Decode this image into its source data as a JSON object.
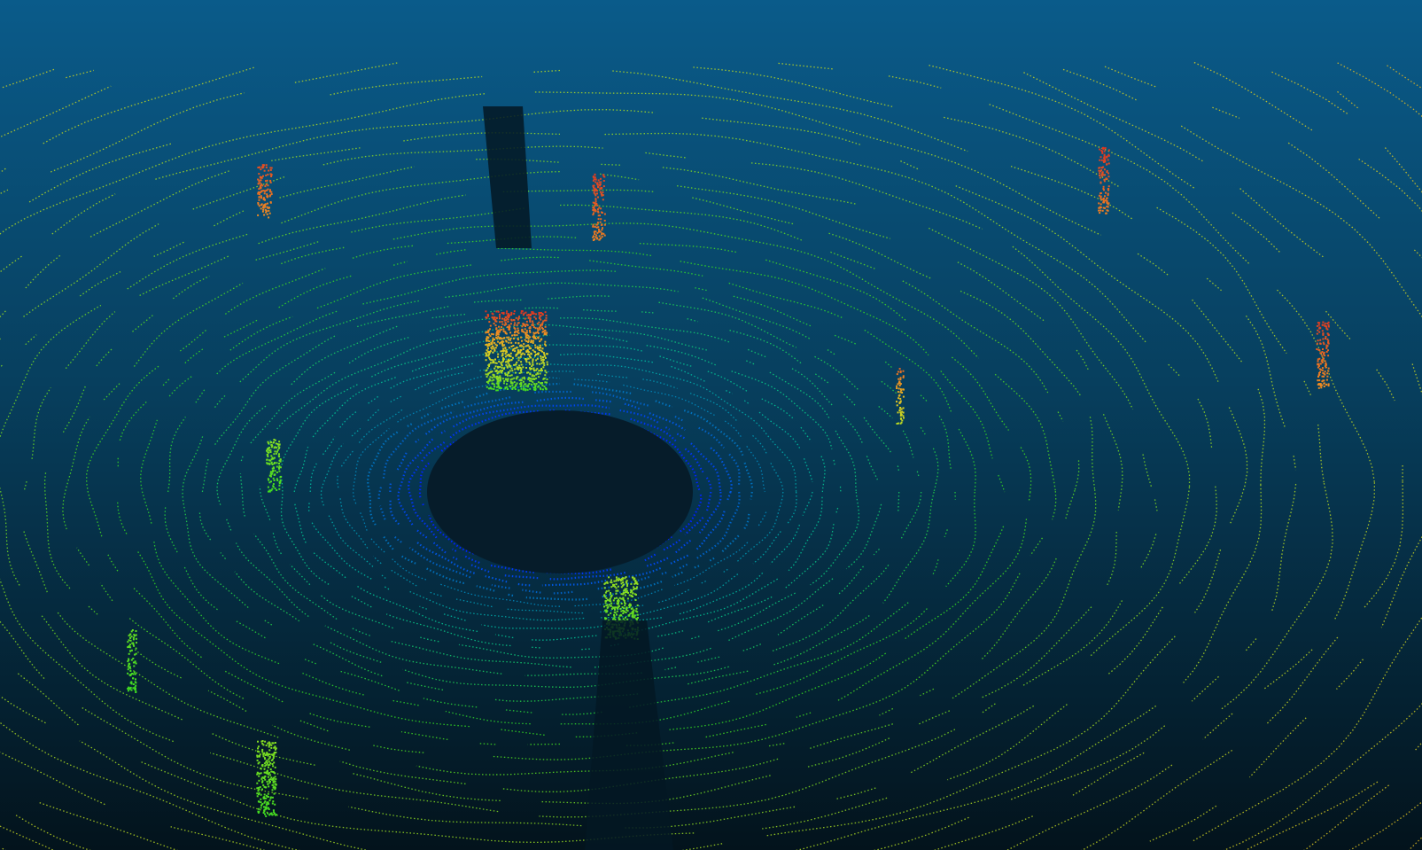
{
  "viewer": {
    "background": {
      "top_color": "#0a5b8a",
      "bottom_color": "#03131c"
    },
    "colormap": {
      "name": "height-jet",
      "stops": [
        "#0022ff",
        "#00c8a0",
        "#33dd22",
        "#aadd22",
        "#ddcc22",
        "#ee8822",
        "#dd3322"
      ]
    }
  }
}
